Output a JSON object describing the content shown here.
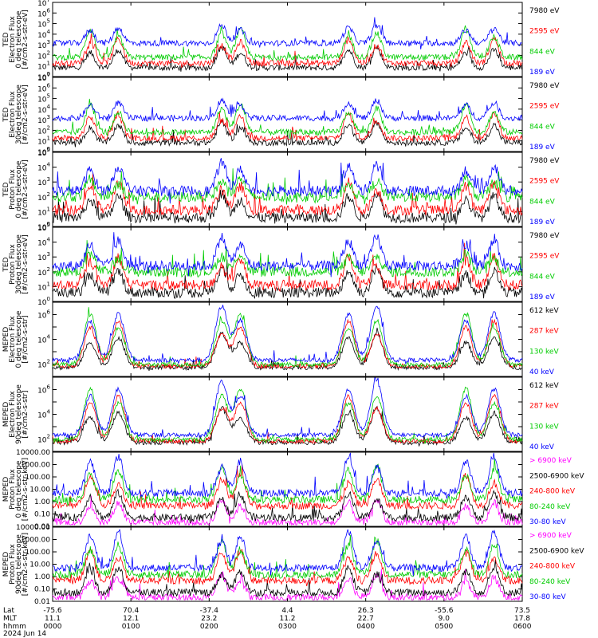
{
  "chart_data": {
    "type": "line",
    "date_label": "2024 Jun 14",
    "x_axis": {
      "rows": [
        {
          "label": "Lat",
          "values": [
            "-75.6",
            "70.4",
            "-37.4",
            "4.4",
            "26.3",
            "-55.6",
            "73.5"
          ]
        },
        {
          "label": "MLT",
          "values": [
            "11.1",
            "12.1",
            "23.2",
            "11.2",
            "22.7",
            "9.0",
            "17.8"
          ]
        },
        {
          "label": "hhmm",
          "values": [
            "0000",
            "0100",
            "0200",
            "0300",
            "0400",
            "0500",
            "0600"
          ]
        }
      ]
    },
    "panels": [
      {
        "id": "ted-electron-0",
        "ylabel": [
          "TED",
          "Electron Flux",
          "0 deg telescope",
          "[#/cm2-s-str-eV]"
        ],
        "yscale": "log",
        "ylim_exp": [
          0,
          7
        ],
        "yticks": [
          "10^0",
          "10^1",
          "10^2",
          "10^3",
          "10^4",
          "10^5",
          "10^6",
          "10^7"
        ],
        "series": [
          {
            "name": "7980 eV",
            "color": "#000000"
          },
          {
            "name": "2595 eV",
            "color": "#ff0000"
          },
          {
            "name": "844 eV",
            "color": "#00cc00"
          },
          {
            "name": "189 eV",
            "color": "#0000ff"
          }
        ]
      },
      {
        "id": "ted-electron-30",
        "ylabel": [
          "TED",
          "Electron Flux",
          "30deg telescope",
          "[#/cm2-s-str-eV]"
        ],
        "yscale": "log",
        "ylim_exp": [
          0,
          7
        ],
        "yticks": [
          "10^0",
          "10^1",
          "10^2",
          "10^3",
          "10^4",
          "10^5",
          "10^6",
          "10^7"
        ],
        "series": [
          {
            "name": "7980 eV",
            "color": "#000000"
          },
          {
            "name": "2595 eV",
            "color": "#ff0000"
          },
          {
            "name": "844 eV",
            "color": "#00cc00"
          },
          {
            "name": "189 eV",
            "color": "#0000ff"
          }
        ]
      },
      {
        "id": "ted-proton-0",
        "ylabel": [
          "TED",
          "Proton Flux",
          "0 deg telescope",
          "[#/cm2-s-str-eV]"
        ],
        "yscale": "log",
        "ylim_exp": [
          0,
          5
        ],
        "yticks": [
          "10^0",
          "10^1",
          "10^2",
          "10^3",
          "10^4",
          "10^5"
        ],
        "series": [
          {
            "name": "7980 eV",
            "color": "#000000"
          },
          {
            "name": "2595 eV",
            "color": "#ff0000"
          },
          {
            "name": "844 eV",
            "color": "#00cc00"
          },
          {
            "name": "189 eV",
            "color": "#0000ff"
          }
        ]
      },
      {
        "id": "ted-proton-30",
        "ylabel": [
          "TED",
          "Proton Flux",
          "30deg telescope",
          "[#/cm2-s-str-eV]"
        ],
        "yscale": "log",
        "ylim_exp": [
          0,
          5
        ],
        "yticks": [
          "10^0",
          "10^1",
          "10^2",
          "10^3",
          "10^4",
          "10^5"
        ],
        "series": [
          {
            "name": "7980 eV",
            "color": "#000000"
          },
          {
            "name": "2595 eV",
            "color": "#ff0000"
          },
          {
            "name": "844 eV",
            "color": "#00cc00"
          },
          {
            "name": "189 eV",
            "color": "#0000ff"
          }
        ]
      },
      {
        "id": "meped-electron-0",
        "ylabel": [
          "MEPED",
          "Electron Flux",
          "0 deg telescope",
          "[#/cm2-s-str]"
        ],
        "yscale": "log",
        "ylim_exp": [
          1,
          7
        ],
        "yticks": [
          "",
          "10^2",
          "",
          "10^4",
          "",
          "10^6",
          ""
        ],
        "series": [
          {
            "name": "612 keV",
            "color": "#000000"
          },
          {
            "name": "287 keV",
            "color": "#ff0000"
          },
          {
            "name": "130 keV",
            "color": "#00cc00"
          },
          {
            "name": "40 keV",
            "color": "#0000ff"
          }
        ]
      },
      {
        "id": "meped-electron-90",
        "ylabel": [
          "MEPED",
          "Electron Flux",
          "90deg telescope",
          "[#/cm2-s-str]"
        ],
        "yscale": "log",
        "ylim_exp": [
          1,
          7
        ],
        "yticks": [
          "",
          "10^2",
          "",
          "10^4",
          "",
          "10^6",
          ""
        ],
        "series": [
          {
            "name": "612 keV",
            "color": "#000000"
          },
          {
            "name": "287 keV",
            "color": "#ff0000"
          },
          {
            "name": "130 keV",
            "color": "#00cc00"
          },
          {
            "name": "40 keV",
            "color": "#0000ff"
          }
        ]
      },
      {
        "id": "meped-proton-0",
        "ylabel": [
          "MEPED",
          "Proton Flux",
          "0 deg telescope",
          "[#/cm2-s-str-keV]"
        ],
        "yscale": "log",
        "ylim_exp": [
          -2,
          4
        ],
        "yticks": [
          "0.01",
          "0.10",
          "1.00",
          "10.00",
          "100.00",
          "1000.00",
          "10000.00"
        ],
        "series": [
          {
            "name": "> 6900 keV",
            "color": "#ff00ff"
          },
          {
            "name": "2500-6900 keV",
            "color": "#000000"
          },
          {
            "name": "240-800 keV",
            "color": "#ff0000"
          },
          {
            "name": "80-240 keV",
            "color": "#00cc00"
          },
          {
            "name": "30-80 keV",
            "color": "#0000ff"
          }
        ]
      },
      {
        "id": "meped-proton-90",
        "ylabel": [
          "MEPED",
          "Proton Flux",
          "90deg telescope",
          "[#/cm2-s-str-keV]"
        ],
        "yscale": "log",
        "ylim_exp": [
          -2,
          4
        ],
        "yticks": [
          "0.01",
          "0.10",
          "1.00",
          "10.00",
          "100.00",
          "1000.00",
          "10000.00"
        ],
        "series": [
          {
            "name": "> 6900 keV",
            "color": "#ff00ff"
          },
          {
            "name": "2500-6900 keV",
            "color": "#000000"
          },
          {
            "name": "240-800 keV",
            "color": "#ff0000"
          },
          {
            "name": "80-240 keV",
            "color": "#00cc00"
          },
          {
            "name": "30-80 keV",
            "color": "#0000ff"
          }
        ]
      }
    ]
  }
}
